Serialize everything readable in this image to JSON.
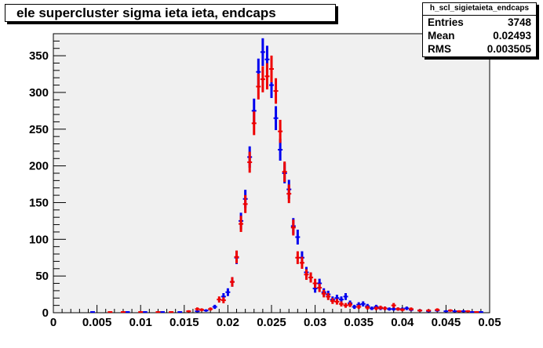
{
  "stats": {
    "name": "h_scl_sigietaieta_endcaps",
    "rows": [
      {
        "label": "Entries",
        "value": "3748"
      },
      {
        "label": "Mean",
        "value": "0.02493"
      },
      {
        "label": "RMS",
        "value": "0.003505"
      }
    ]
  },
  "chart_data": {
    "type": "scatter",
    "title": "ele supercluster sigma ieta ieta, endcaps",
    "xlim": [
      0,
      0.05
    ],
    "ylim": [
      0,
      380
    ],
    "xticks": [
      0,
      0.005,
      0.01,
      0.015,
      0.02,
      0.025,
      0.03,
      0.035,
      0.04,
      0.045,
      0.05
    ],
    "xtick_labels": [
      "0",
      "0.005",
      "0.01",
      "0.015",
      "0.02",
      "0.025",
      "0.03",
      "0.035",
      "0.04",
      "0.045",
      "0.05"
    ],
    "yticks": [
      0,
      50,
      100,
      150,
      200,
      250,
      300,
      350
    ],
    "ytick_labels": [
      "0",
      "50",
      "100",
      "150",
      "200",
      "250",
      "300",
      "350"
    ],
    "grid": false,
    "series": [
      {
        "color": "#0000ee",
        "x": [
          0.0045,
          0.0085,
          0.0105,
          0.0125,
          0.0145,
          0.0165,
          0.0175,
          0.0185,
          0.0195,
          0.02,
          0.0205,
          0.021,
          0.0215,
          0.022,
          0.0225,
          0.023,
          0.0235,
          0.024,
          0.0245,
          0.025,
          0.0255,
          0.026,
          0.0265,
          0.027,
          0.0275,
          0.028,
          0.0285,
          0.029,
          0.0295,
          0.03,
          0.0305,
          0.031,
          0.0315,
          0.032,
          0.0325,
          0.033,
          0.0335,
          0.034,
          0.0345,
          0.035,
          0.0355,
          0.036,
          0.0365,
          0.037,
          0.0375,
          0.038,
          0.0385,
          0.039,
          0.0395,
          0.04,
          0.0405,
          0.041,
          0.042,
          0.043,
          0.044,
          0.045,
          0.046,
          0.047,
          0.048,
          0.049
        ],
        "values": [
          1,
          1,
          1,
          1,
          1,
          2,
          3,
          8,
          22,
          28,
          42,
          75,
          125,
          155,
          212,
          275,
          328,
          355,
          345,
          310,
          265,
          222,
          190,
          168,
          118,
          103,
          75,
          55,
          48,
          33,
          40,
          28,
          25,
          18,
          20,
          18,
          22,
          13,
          8,
          11,
          12,
          9,
          6,
          8,
          6,
          6,
          5,
          5,
          5,
          5,
          6,
          4,
          3,
          2,
          3,
          2,
          2,
          2,
          1,
          1
        ],
        "errors": [
          1,
          1,
          1,
          1,
          1,
          1.4,
          1.7,
          2.8,
          4.7,
          5.3,
          6.5,
          8.7,
          11.2,
          12.4,
          14.6,
          16.6,
          18.1,
          18.8,
          18.6,
          17.6,
          16.3,
          14.9,
          13.8,
          13,
          10.9,
          10.1,
          8.7,
          7.4,
          6.9,
          5.7,
          6.3,
          5.3,
          5,
          4.2,
          4.5,
          4.2,
          4.7,
          3.6,
          2.8,
          3.3,
          3.5,
          3,
          2.4,
          2.8,
          2.4,
          2.4,
          2.2,
          2.2,
          2.2,
          2.2,
          2.4,
          2,
          1.7,
          1.4,
          1.7,
          1.4,
          1.4,
          1.4,
          1,
          1
        ]
      },
      {
        "color": "#ee0000",
        "x": [
          0.0065,
          0.008,
          0.01,
          0.012,
          0.0135,
          0.0155,
          0.0165,
          0.017,
          0.018,
          0.019,
          0.0195,
          0.0205,
          0.021,
          0.0215,
          0.022,
          0.0225,
          0.023,
          0.0235,
          0.024,
          0.0245,
          0.025,
          0.0255,
          0.026,
          0.0265,
          0.027,
          0.0275,
          0.028,
          0.0285,
          0.029,
          0.0295,
          0.03,
          0.0305,
          0.031,
          0.0315,
          0.032,
          0.0325,
          0.033,
          0.0335,
          0.034,
          0.035,
          0.036,
          0.037,
          0.0375,
          0.038,
          0.039,
          0.0395,
          0.04,
          0.041,
          0.042,
          0.043,
          0.044,
          0.0455,
          0.0465,
          0.0475,
          0.0485
        ],
        "values": [
          1,
          1,
          1,
          1,
          1,
          2,
          5,
          4,
          5,
          18,
          17,
          42,
          76,
          121,
          148,
          205,
          258,
          308,
          318,
          322,
          332,
          302,
          247,
          192,
          162,
          116,
          75,
          68,
          52,
          48,
          40,
          34,
          26,
          22,
          16,
          15,
          12,
          10,
          11,
          8,
          7,
          6,
          7,
          6,
          10,
          5,
          4,
          5,
          3,
          3,
          4,
          3,
          2,
          2,
          1
        ],
        "errors": [
          1,
          1,
          1,
          1,
          1,
          1.4,
          2.2,
          2,
          2.2,
          4.2,
          4.1,
          6.5,
          8.7,
          11,
          12.2,
          14.3,
          16.1,
          17.5,
          17.8,
          17.9,
          18.2,
          17.4,
          15.7,
          13.9,
          12.7,
          10.8,
          8.7,
          8.2,
          7.2,
          6.9,
          6.3,
          5.8,
          5.1,
          4.7,
          4,
          3.9,
          3.5,
          3.2,
          3.3,
          2.8,
          2.6,
          2.4,
          2.6,
          2.4,
          3.2,
          2.2,
          2,
          2.2,
          1.7,
          1.7,
          2,
          1.7,
          1.4,
          1.4,
          1
        ]
      }
    ]
  }
}
